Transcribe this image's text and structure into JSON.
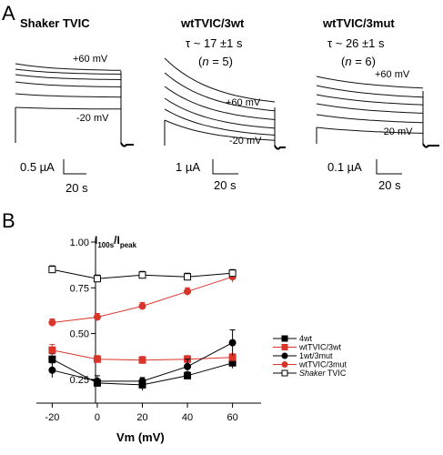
{
  "panel_a": {
    "letter": "A",
    "panels": [
      {
        "title": "Shaker TVIC",
        "tau_line": "",
        "n_prefix": "",
        "n_sym": "",
        "n_suffix": "",
        "v_top": "+60 mV",
        "v_bottom": "-20 mV",
        "scale_amp": "0.5 µA",
        "scale_time": "20 s"
      },
      {
        "title": "wtTVIC/3wt",
        "tau_line": "τ ~ 17 ±1 s",
        "n_prefix": "(",
        "n_sym": "n",
        "n_suffix": " = 5)",
        "v_top": "+60 mV",
        "v_bottom": "-20 mV",
        "scale_amp": "1 µA",
        "scale_time": "20 s"
      },
      {
        "title": "wtTVIC/3mut",
        "tau_line": "τ ~ 26 ±1 s",
        "n_prefix": "(",
        "n_sym": "n",
        "n_suffix": " = 6)",
        "v_top": "+60 mV",
        "v_bottom": "-20 mV",
        "scale_amp": "0.1 µA",
        "scale_time": "20 s"
      }
    ]
  },
  "panel_b": {
    "letter": "B",
    "ylabel_main": "I",
    "ylabel_sub1": "100s",
    "ylabel_sep": "/I",
    "ylabel_sub2": "peak",
    "xlabel": "Vm (mV)"
  },
  "chart_data": {
    "type": "line",
    "x": [
      -20,
      0,
      20,
      40,
      60
    ],
    "xticks": [
      "-20",
      "0",
      "20",
      "40",
      "60"
    ],
    "yticks": [
      "0.25",
      "0.50",
      "0.75",
      "1.00"
    ],
    "xlim": [
      -25,
      65
    ],
    "ylim": [
      0.12,
      1.02
    ],
    "legend_position": "lower-right",
    "series": [
      {
        "name": "4wt",
        "marker": "square",
        "filled": true,
        "color": "#000000",
        "values": [
          0.36,
          0.23,
          0.22,
          0.27,
          0.34
        ],
        "err": [
          0.03,
          0.02,
          0.03,
          0.02,
          0.03
        ]
      },
      {
        "name": "wtTVIC/3wt",
        "marker": "square",
        "filled": true,
        "color": "#d9352b",
        "values": [
          0.41,
          0.36,
          0.355,
          0.36,
          0.37
        ],
        "err": [
          0.03,
          0.02,
          0.02,
          0.02,
          0.02
        ]
      },
      {
        "name": "1wt/3mut",
        "marker": "circle",
        "filled": true,
        "color": "#000000",
        "values": [
          0.3,
          0.24,
          0.24,
          0.32,
          0.45
        ],
        "err": [
          0.04,
          0.03,
          0.02,
          0.04,
          0.07
        ]
      },
      {
        "name": "wtTVIC/3mut",
        "marker": "circle",
        "filled": true,
        "color": "#d9352b",
        "values": [
          0.56,
          0.59,
          0.65,
          0.73,
          0.81
        ],
        "err": [
          0.02,
          0.02,
          0.02,
          0.02,
          0.03
        ]
      },
      {
        "name": "Shaker TVIC",
        "legend_italic": "Shaker",
        "legend_rest": " TVIC",
        "marker": "square",
        "filled": false,
        "color": "#000000",
        "values": [
          0.85,
          0.8,
          0.82,
          0.81,
          0.83
        ],
        "err": [
          0.02,
          0.02,
          0.02,
          0.02,
          0.02
        ]
      }
    ]
  }
}
